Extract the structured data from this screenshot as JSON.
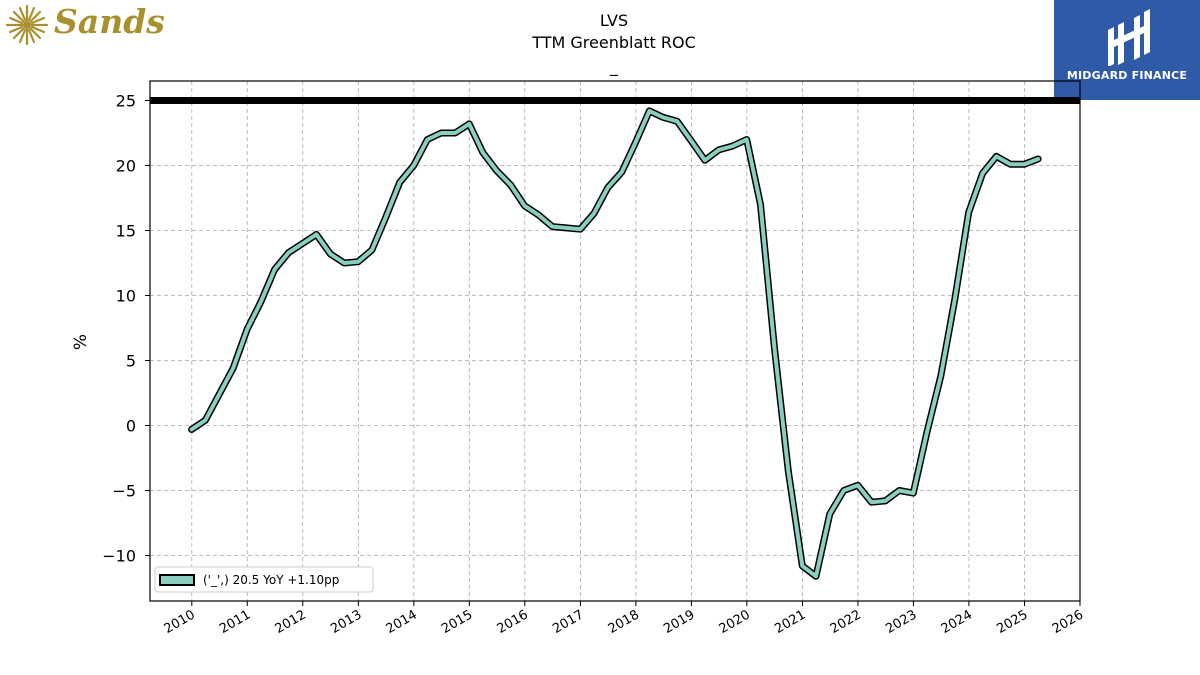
{
  "branding": {
    "left_logo_text": "Sands",
    "right_logo_text": "MIDGARD FINANCE",
    "left_logo_color": "#a8902e",
    "right_logo_bg": "#2f5aa8"
  },
  "chart_data": {
    "type": "line",
    "title": "LVS",
    "subtitle": "TTM Greenblatt ROC",
    "subtitle2": "_",
    "ylabel": "%",
    "xlabel": "",
    "xlim": [
      "2009-04-01",
      "2026-01-01"
    ],
    "ylim": [
      -13.5,
      26.5
    ],
    "yticks": [
      -10,
      -5,
      0,
      5,
      10,
      15,
      20,
      25
    ],
    "xticks": [
      "2010",
      "2011",
      "2012",
      "2013",
      "2014",
      "2015",
      "2016",
      "2017",
      "2018",
      "2019",
      "2020",
      "2021",
      "2022",
      "2023",
      "2024",
      "2025",
      "2026"
    ],
    "grid": true,
    "legend_position": "lower-left",
    "reference_line": {
      "y": 25,
      "color": "#000000"
    },
    "series": [
      {
        "name": "('_',) 20.5 YoY +1.10pp",
        "color": "#88cfc0",
        "edge_color": "#000000",
        "points": [
          [
            "2009-12-31",
            -0.3
          ],
          [
            "2010-03-31",
            0.4
          ],
          [
            "2010-06-30",
            2.4
          ],
          [
            "2010-09-30",
            4.4
          ],
          [
            "2010-12-31",
            7.4
          ],
          [
            "2011-03-31",
            9.5
          ],
          [
            "2011-06-30",
            12.0
          ],
          [
            "2011-09-30",
            13.3
          ],
          [
            "2011-12-31",
            14.0
          ],
          [
            "2012-03-31",
            14.7
          ],
          [
            "2012-06-30",
            13.2
          ],
          [
            "2012-09-30",
            12.5
          ],
          [
            "2012-12-31",
            12.6
          ],
          [
            "2013-03-31",
            13.5
          ],
          [
            "2013-06-30",
            16.0
          ],
          [
            "2013-09-30",
            18.7
          ],
          [
            "2013-12-31",
            20.0
          ],
          [
            "2014-03-31",
            22.0
          ],
          [
            "2014-06-30",
            22.5
          ],
          [
            "2014-09-30",
            22.5
          ],
          [
            "2014-12-31",
            23.2
          ],
          [
            "2015-03-31",
            21.0
          ],
          [
            "2015-06-30",
            19.6
          ],
          [
            "2015-09-30",
            18.5
          ],
          [
            "2015-12-31",
            16.9
          ],
          [
            "2016-03-31",
            16.2
          ],
          [
            "2016-06-30",
            15.3
          ],
          [
            "2016-09-30",
            15.2
          ],
          [
            "2016-12-31",
            15.1
          ],
          [
            "2017-03-31",
            16.3
          ],
          [
            "2017-06-30",
            18.3
          ],
          [
            "2017-09-30",
            19.5
          ],
          [
            "2017-12-31",
            21.8
          ],
          [
            "2018-03-31",
            24.2
          ],
          [
            "2018-06-30",
            23.7
          ],
          [
            "2018-09-30",
            23.4
          ],
          [
            "2018-12-31",
            21.9
          ],
          [
            "2019-03-31",
            20.4
          ],
          [
            "2019-06-30",
            21.2
          ],
          [
            "2019-09-30",
            21.5
          ],
          [
            "2019-12-31",
            22.0
          ],
          [
            "2020-03-31",
            17.0
          ],
          [
            "2020-06-30",
            6.0
          ],
          [
            "2020-09-30",
            -3.5
          ],
          [
            "2020-12-31",
            -10.8
          ],
          [
            "2021-03-31",
            -11.6
          ],
          [
            "2021-06-30",
            -6.8
          ],
          [
            "2021-09-30",
            -5.0
          ],
          [
            "2021-12-31",
            -4.6
          ],
          [
            "2022-03-31",
            -5.9
          ],
          [
            "2022-06-30",
            -5.8
          ],
          [
            "2022-09-30",
            -5.0
          ],
          [
            "2022-12-31",
            -5.2
          ],
          [
            "2023-03-31",
            -0.5
          ],
          [
            "2023-06-30",
            3.8
          ],
          [
            "2023-09-30",
            9.7
          ],
          [
            "2023-12-31",
            16.4
          ],
          [
            "2024-03-31",
            19.4
          ],
          [
            "2024-06-30",
            20.7
          ],
          [
            "2024-09-30",
            20.1
          ],
          [
            "2024-12-31",
            20.1
          ],
          [
            "2025-03-31",
            20.5
          ]
        ]
      }
    ]
  }
}
